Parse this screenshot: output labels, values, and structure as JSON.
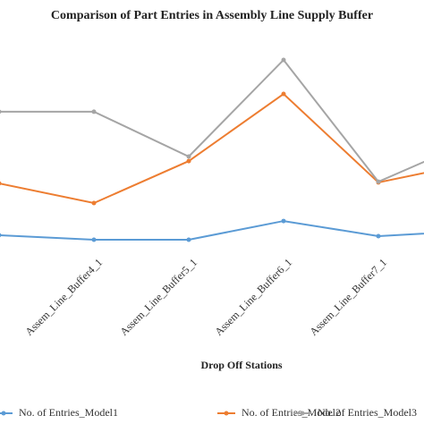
{
  "chart_data": {
    "type": "line",
    "title": "Comparison of Part Entries in Assembly Line Supply Buffer",
    "x_label": "Drop Off Stations",
    "categories": [
      null,
      "Assem_Line_Buffer4_1",
      "Assem_Line_Buffer5_1",
      "Assem_Line_Buffer6_1",
      "Assem_Line_Buffer7_1",
      null
    ],
    "series": [
      {
        "name": "No. of Entries_Model1",
        "color": "#5b9bd5",
        "values": [
          13.1,
          11.2,
          11.2,
          19.0,
          12.7,
          14.9
        ]
      },
      {
        "name": "No. of Entries_Model2",
        "color": "#ed7d31",
        "values": [
          34.7,
          26.5,
          44.0,
          72.0,
          35.1,
          43.3
        ]
      },
      {
        "name": "No. of Entries_Model3",
        "color": "#a5a5a5",
        "values": [
          64.6,
          64.6,
          45.9,
          86.2,
          35.4,
          52.6
        ]
      }
    ],
    "ylim": [
      0,
      100
    ]
  }
}
